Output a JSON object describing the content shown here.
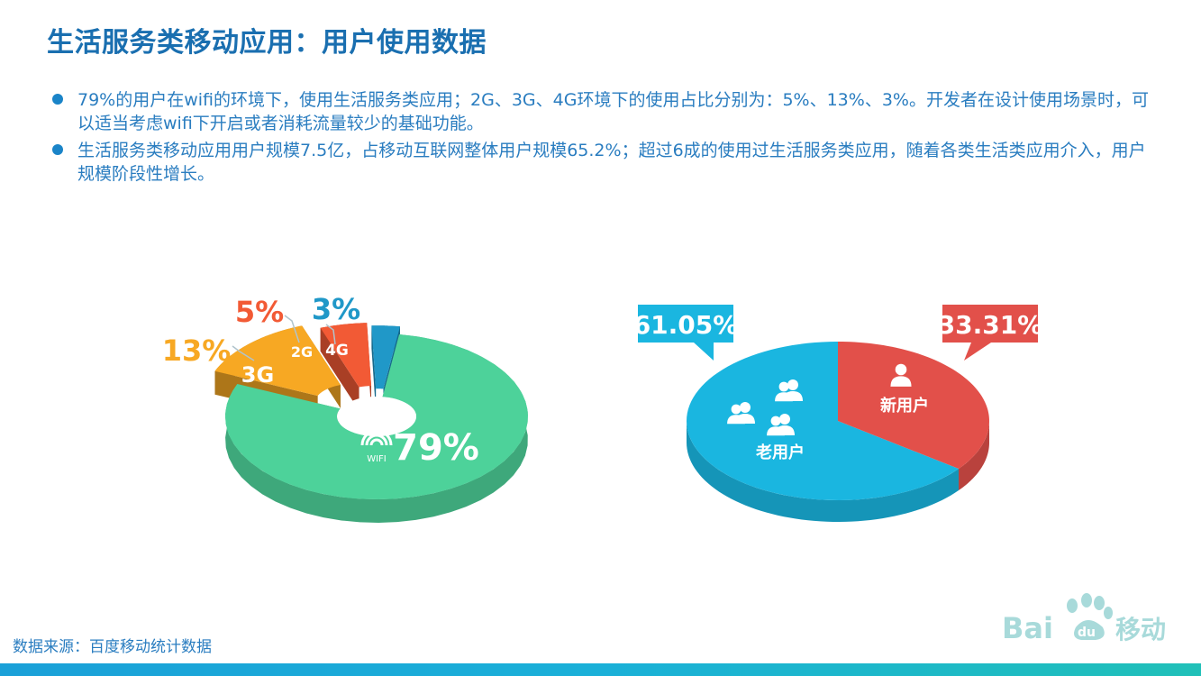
{
  "title": "生活服务类移动应用：用户使用数据",
  "bullets": [
    "79%的用户在wifi的环境下，使用生活服务类应用；2G、3G、4G环境下的使用占比分别为：5%、13%、3%。开发者在设计使用场景时，可以适当考虑wifi下开启或者消耗流量较少的基础功能。",
    "生活服务类移动应用用户规模7.5亿，占移动互联网整体用户规模65.2%；超过6成的使用过生活服务类应用，随着各类生活类应用介入，用户规模阶段性增长。"
  ],
  "chart_data": [
    {
      "type": "pie",
      "labels": [
        "WIFI",
        "3G",
        "2G",
        "4G"
      ],
      "values": [
        79,
        13,
        5,
        3
      ],
      "value_labels": [
        "79%",
        "13%",
        "5%",
        "3%"
      ],
      "colors": [
        "#4dd29a",
        "#f7a823",
        "#f25a35",
        "#2098c8"
      ]
    },
    {
      "type": "pie",
      "labels": [
        "老用户",
        "新用户"
      ],
      "values": [
        61.05,
        33.31
      ],
      "value_labels": [
        "61.05%",
        "33.31%"
      ],
      "colors": [
        "#1ab6e0",
        "#e2504a"
      ]
    }
  ],
  "footer": {
    "source": "数据来源：百度移动统计数据",
    "logo_text": "Bai",
    "logo_du": "du",
    "logo_cn": "移动"
  },
  "icons": {
    "wifi": "wifi-icon",
    "single_user": "user-icon",
    "group_user": "users-icon"
  }
}
